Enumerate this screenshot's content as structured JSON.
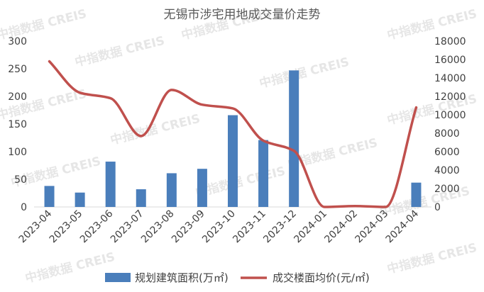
{
  "watermark_text": "中指数据 CREIS",
  "chart_data": {
    "type": "bar",
    "title": "无锡市涉宅用地成交量价走势",
    "categories": [
      "2023-04",
      "2023-05",
      "2023-06",
      "2023-07",
      "2023-08",
      "2023-09",
      "2023-10",
      "2023-11",
      "2023-12",
      "2024-01",
      "2024-02",
      "2024-03",
      "2024-04"
    ],
    "series": [
      {
        "name": "规划建筑面积(万㎡)",
        "type": "bar",
        "axis": "left",
        "color": "#4a7ebb",
        "values": [
          38,
          26,
          82,
          32,
          61,
          69,
          166,
          121,
          247,
          0,
          0,
          0,
          44
        ]
      },
      {
        "name": "成交楼面均价(元/㎡)",
        "type": "line",
        "smooth": true,
        "axis": "right",
        "color": "#c0504d",
        "values": [
          15800,
          12400,
          11800,
          7700,
          12700,
          11100,
          10700,
          7200,
          6100,
          0,
          100,
          0,
          10800
        ]
      }
    ],
    "y_left": {
      "min": 0,
      "max": 300,
      "ticks": [
        0,
        50,
        100,
        150,
        200,
        250,
        300
      ]
    },
    "y_right": {
      "min": 0,
      "max": 18000,
      "ticks": [
        0,
        2000,
        4000,
        6000,
        8000,
        10000,
        12000,
        14000,
        16000,
        18000
      ]
    },
    "grid": false,
    "legend_position": "bottom"
  }
}
